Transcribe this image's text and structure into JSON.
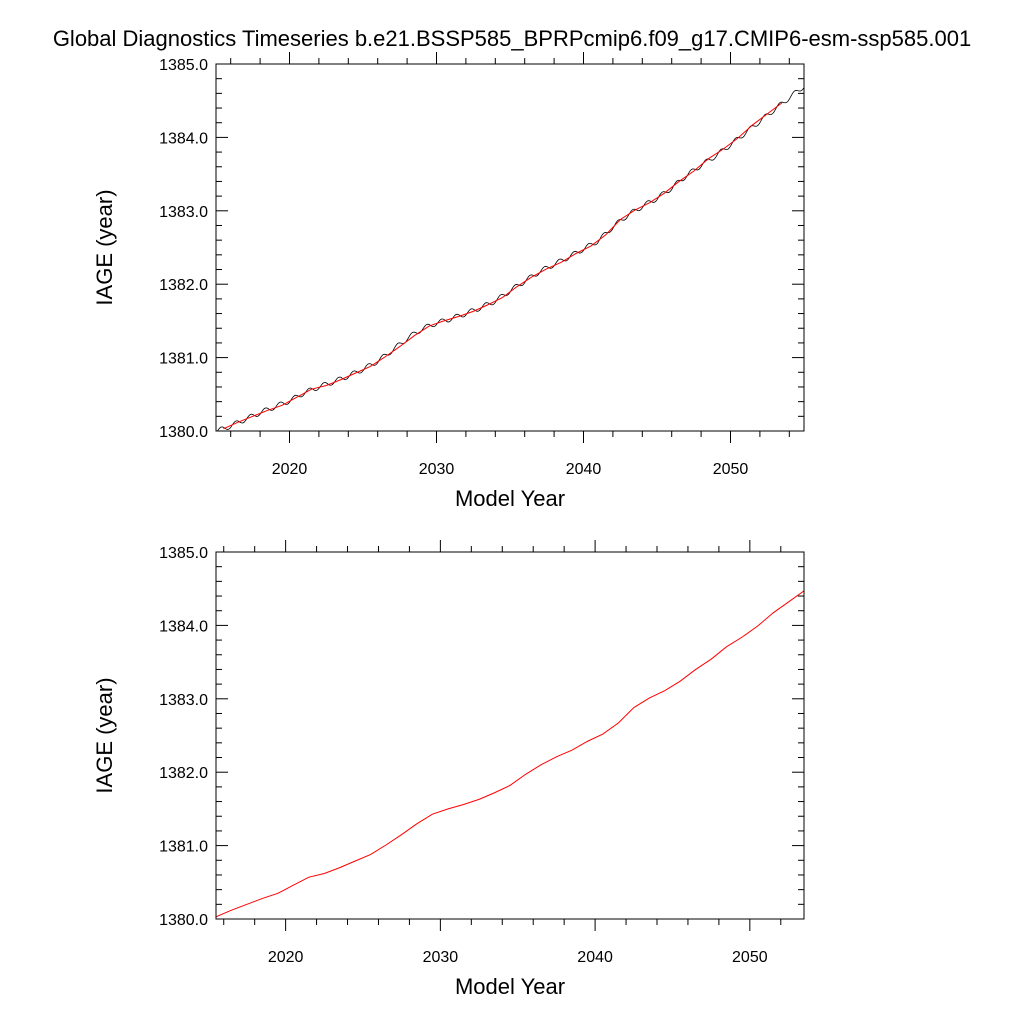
{
  "title": "Global Diagnostics Timeseries b.e21.BSSP585_BPRPcmip6.f09_g17.CMIP6-esm-ssp585.001",
  "colors": {
    "raw": "#000000",
    "smoothed": "#ff0000",
    "frame": "#000000"
  },
  "chart_data": [
    {
      "type": "line",
      "title": "",
      "xlabel": "Model Year",
      "ylabel": "IAGE (year)",
      "xlim": [
        2015,
        2055
      ],
      "ylim": [
        1380.0,
        1385.0
      ],
      "x_ticks": [
        2020,
        2030,
        2040,
        2050
      ],
      "x_tick_labels": [
        "2020",
        "2030",
        "2040",
        "2050"
      ],
      "y_ticks": [
        1380.0,
        1381.0,
        1382.0,
        1383.0,
        1384.0,
        1385.0
      ],
      "y_tick_labels": [
        "1380.0",
        "1381.0",
        "1382.0",
        "1383.0",
        "1384.0",
        "1385.0"
      ],
      "grid": false,
      "legend": "none",
      "series": [
        {
          "kind": "monthly",
          "color": "#000000",
          "x": [
            2015.1,
            2016,
            2017,
            2018,
            2019,
            2020,
            2021,
            2022,
            2023,
            2024,
            2025,
            2026,
            2027,
            2028,
            2029,
            2030,
            2031,
            2032,
            2033,
            2034,
            2035,
            2036,
            2037,
            2038,
            2039,
            2040,
            2041,
            2042,
            2043,
            2044,
            2045,
            2046,
            2047,
            2048,
            2049,
            2050,
            2051,
            2052,
            2053,
            2054,
            2055
          ],
          "values": [
            1380.0,
            1380.07,
            1380.16,
            1380.25,
            1380.33,
            1380.41,
            1380.52,
            1380.6,
            1380.67,
            1380.75,
            1380.84,
            1380.95,
            1381.1,
            1381.26,
            1381.39,
            1381.47,
            1381.53,
            1381.6,
            1381.68,
            1381.77,
            1381.91,
            1382.04,
            1382.17,
            1382.27,
            1382.37,
            1382.48,
            1382.59,
            1382.78,
            1382.94,
            1383.06,
            1383.17,
            1383.31,
            1383.48,
            1383.62,
            1383.75,
            1383.9,
            1384.06,
            1384.22,
            1384.38,
            1384.54,
            1384.7
          ],
          "seasonal_amplitude": 0.035
        },
        {
          "kind": "annual",
          "color": "#ff0000",
          "x": [
            2015.5,
            2016.5,
            2017.5,
            2018.5,
            2019.5,
            2020.5,
            2021.5,
            2022.5,
            2023.5,
            2024.5,
            2025.5,
            2026.5,
            2027.5,
            2028.5,
            2029.5,
            2030.5,
            2031.5,
            2032.5,
            2033.5,
            2034.5,
            2035.5,
            2036.5,
            2037.5,
            2038.5,
            2039.5,
            2040.5,
            2041.5,
            2042.5,
            2043.5,
            2044.5,
            2045.5,
            2046.5,
            2047.5,
            2048.5,
            2049.5,
            2050.5,
            2051.5,
            2052.5,
            2053.5
          ],
          "values": [
            1380.03,
            1380.12,
            1380.2,
            1380.28,
            1380.35,
            1380.46,
            1380.57,
            1380.62,
            1380.7,
            1380.79,
            1380.88,
            1381.01,
            1381.15,
            1381.3,
            1381.43,
            1381.5,
            1381.56,
            1381.63,
            1381.72,
            1381.82,
            1381.97,
            1382.1,
            1382.21,
            1382.3,
            1382.42,
            1382.52,
            1382.67,
            1382.88,
            1383.01,
            1383.11,
            1383.24,
            1383.4,
            1383.54,
            1383.71,
            1383.84,
            1383.99,
            1384.17,
            1384.32,
            1384.47
          ]
        }
      ]
    },
    {
      "type": "line",
      "title": "",
      "xlabel": "Model Year",
      "ylabel": "IAGE (year)",
      "xlim": [
        2015.5,
        2053.5
      ],
      "ylim": [
        1380.0,
        1385.0
      ],
      "x_ticks": [
        2020,
        2030,
        2040,
        2050
      ],
      "x_tick_labels": [
        "2020",
        "2030",
        "2040",
        "2050"
      ],
      "y_ticks": [
        1380.0,
        1381.0,
        1382.0,
        1383.0,
        1384.0,
        1385.0
      ],
      "y_tick_labels": [
        "1380.0",
        "1381.0",
        "1382.0",
        "1383.0",
        "1384.0",
        "1385.0"
      ],
      "grid": false,
      "legend": "none",
      "series": [
        {
          "kind": "annual",
          "color": "#ff0000",
          "x": [
            2015.5,
            2016.5,
            2017.5,
            2018.5,
            2019.5,
            2020.5,
            2021.5,
            2022.5,
            2023.5,
            2024.5,
            2025.5,
            2026.5,
            2027.5,
            2028.5,
            2029.5,
            2030.5,
            2031.5,
            2032.5,
            2033.5,
            2034.5,
            2035.5,
            2036.5,
            2037.5,
            2038.5,
            2039.5,
            2040.5,
            2041.5,
            2042.5,
            2043.5,
            2044.5,
            2045.5,
            2046.5,
            2047.5,
            2048.5,
            2049.5,
            2050.5,
            2051.5,
            2052.5,
            2053.5
          ],
          "values": [
            1380.03,
            1380.12,
            1380.2,
            1380.28,
            1380.35,
            1380.46,
            1380.57,
            1380.62,
            1380.7,
            1380.79,
            1380.88,
            1381.01,
            1381.15,
            1381.3,
            1381.43,
            1381.5,
            1381.56,
            1381.63,
            1381.72,
            1381.82,
            1381.97,
            1382.1,
            1382.21,
            1382.3,
            1382.42,
            1382.52,
            1382.67,
            1382.88,
            1383.01,
            1383.11,
            1383.24,
            1383.4,
            1383.54,
            1383.71,
            1383.84,
            1383.99,
            1384.17,
            1384.32,
            1384.47
          ]
        }
      ]
    }
  ]
}
